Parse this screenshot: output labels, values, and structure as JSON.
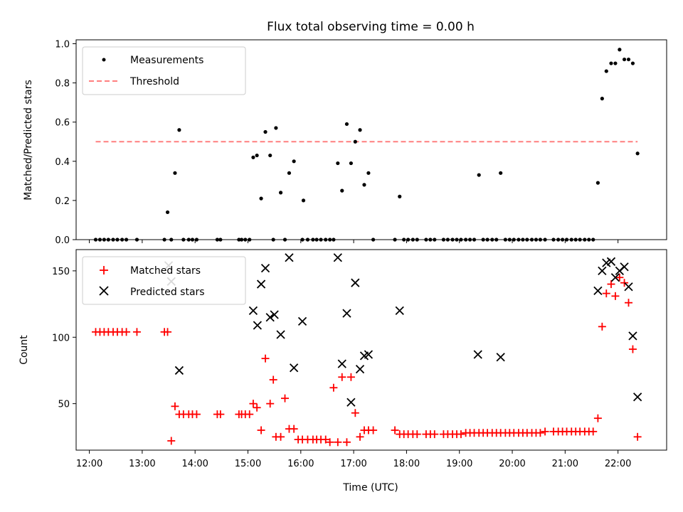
{
  "chart_data": [
    {
      "type": "scatter",
      "title": "Flux total observing time = 0.00 h",
      "xlabel": "",
      "ylabel": "Matched/Predicted stars",
      "ylim": [
        0,
        1.02
      ],
      "yticks": [
        0.0,
        0.2,
        0.4,
        0.6,
        0.8,
        1.0
      ],
      "yticklabels": [
        "0.0",
        "0.2",
        "0.4",
        "0.6",
        "0.8",
        "1.0"
      ],
      "xlim_hours": [
        11.75,
        22.92
      ],
      "legend": {
        "placement": "top-left",
        "entries": [
          "Measurements",
          "Threshold"
        ]
      },
      "series": [
        {
          "name": "Measurements",
          "marker": "dot",
          "color": "#000000",
          "x_hours": [
            12.12,
            12.2,
            12.28,
            12.36,
            12.45,
            12.53,
            12.62,
            12.7,
            12.9,
            13.42,
            13.48,
            13.55,
            13.62,
            13.7,
            13.78,
            13.88,
            13.95,
            14.03,
            14.42,
            14.48,
            14.83,
            14.88,
            14.95,
            15.03,
            15.1,
            15.17,
            15.25,
            15.33,
            15.42,
            15.48,
            15.53,
            15.62,
            15.7,
            15.78,
            15.87,
            16.03,
            16.05,
            16.13,
            16.23,
            16.3,
            16.38,
            16.47,
            16.55,
            16.62,
            16.7,
            16.78,
            16.87,
            16.95,
            17.03,
            17.12,
            17.2,
            17.28,
            17.37,
            17.78,
            17.87,
            17.95,
            18.03,
            18.12,
            18.2,
            18.37,
            18.45,
            18.53,
            18.7,
            18.78,
            18.87,
            18.95,
            19.03,
            19.12,
            19.2,
            19.28,
            19.37,
            19.45,
            19.53,
            19.62,
            19.7,
            19.78,
            19.87,
            19.95,
            20.03,
            20.12,
            20.2,
            20.28,
            20.37,
            20.45,
            20.53,
            20.62,
            20.78,
            20.87,
            20.95,
            21.03,
            21.12,
            21.2,
            21.28,
            21.37,
            21.45,
            21.53,
            21.62,
            21.7,
            21.78,
            21.87,
            21.95,
            22.03,
            22.12,
            22.2,
            22.28,
            22.37
          ],
          "y": [
            0,
            0,
            0,
            0,
            0,
            0,
            0,
            0,
            0,
            0,
            0.14,
            0,
            0.34,
            0.56,
            0,
            0,
            0,
            0,
            0,
            0,
            0,
            0,
            0,
            0,
            0.42,
            0.43,
            0.21,
            0.55,
            0.43,
            0,
            0.57,
            0.24,
            0,
            0.34,
            0.4,
            0,
            0.2,
            0,
            0,
            0,
            0,
            0,
            0,
            0,
            0.39,
            0.25,
            0.59,
            0.39,
            0.5,
            0.56,
            0.28,
            0.34,
            0,
            0,
            0.22,
            0,
            0,
            0,
            0,
            0,
            0,
            0,
            0,
            0,
            0,
            0,
            0,
            0,
            0,
            0,
            0.33,
            0,
            0,
            0,
            0,
            0.34,
            0,
            0,
            0,
            0,
            0,
            0,
            0,
            0,
            0,
            0,
            0,
            0,
            0,
            0,
            0,
            0,
            0,
            0,
            0,
            0,
            0.29,
            0.72,
            0.86,
            0.9,
            0.9,
            0.97,
            0.92,
            0.92,
            0.9,
            0.44
          ]
        },
        {
          "name": "Threshold",
          "style": "dashed",
          "color": "#ff7f7f",
          "x_hours": [
            12.12,
            22.37
          ],
          "y": [
            0.5,
            0.5
          ]
        }
      ]
    },
    {
      "type": "scatter",
      "title": "",
      "xlabel": "Time (UTC)",
      "ylabel": "Count",
      "ylim": [
        15,
        166
      ],
      "yticks": [
        50,
        100,
        150
      ],
      "yticklabels": [
        "50",
        "100",
        "150"
      ],
      "xlim_hours": [
        11.75,
        22.92
      ],
      "xticks_hours": [
        12,
        13,
        14,
        15,
        16,
        17,
        18,
        19,
        20,
        21,
        22
      ],
      "xticklabels": [
        "12:00",
        "13:00",
        "14:00",
        "15:00",
        "16:00",
        "17:00",
        "18:00",
        "19:00",
        "20:00",
        "21:00",
        "22:00"
      ],
      "legend": {
        "placement": "top-left",
        "entries": [
          "Matched stars",
          "Predicted stars"
        ]
      },
      "series": [
        {
          "name": "Matched stars",
          "marker": "plus",
          "color": "#ff0000",
          "x_hours": [
            12.12,
            12.2,
            12.28,
            12.36,
            12.45,
            12.53,
            12.62,
            12.7,
            12.9,
            13.42,
            13.48,
            13.55,
            13.62,
            13.7,
            13.78,
            13.88,
            13.95,
            14.03,
            14.42,
            14.48,
            14.83,
            14.88,
            14.95,
            15.03,
            15.1,
            15.17,
            15.25,
            15.33,
            15.42,
            15.48,
            15.53,
            15.62,
            15.7,
            15.78,
            15.87,
            15.95,
            16.03,
            16.13,
            16.23,
            16.3,
            16.38,
            16.47,
            16.55,
            16.62,
            16.7,
            16.78,
            16.87,
            16.95,
            17.03,
            17.12,
            17.2,
            17.28,
            17.37,
            17.78,
            17.87,
            17.95,
            18.03,
            18.12,
            18.2,
            18.37,
            18.45,
            18.53,
            18.7,
            18.78,
            18.87,
            18.95,
            19.03,
            19.12,
            19.2,
            19.28,
            19.37,
            19.45,
            19.53,
            19.62,
            19.7,
            19.78,
            19.87,
            19.95,
            20.03,
            20.12,
            20.2,
            20.28,
            20.37,
            20.45,
            20.53,
            20.62,
            20.78,
            20.87,
            20.95,
            21.03,
            21.12,
            21.2,
            21.28,
            21.37,
            21.45,
            21.53,
            21.62,
            21.7,
            21.78,
            21.87,
            21.95,
            22.03,
            22.12,
            22.2,
            22.28,
            22.37
          ],
          "y": [
            104,
            104,
            104,
            104,
            104,
            104,
            104,
            104,
            104,
            104,
            104,
            22,
            48,
            42,
            42,
            42,
            42,
            42,
            42,
            42,
            42,
            42,
            42,
            42,
            50,
            47,
            30,
            84,
            50,
            68,
            25,
            25,
            54,
            31,
            31,
            23,
            23,
            23,
            23,
            23,
            23,
            23,
            21,
            62,
            21,
            70,
            21,
            70,
            43,
            25,
            30,
            30,
            30,
            30,
            27,
            27,
            27,
            27,
            27,
            27,
            27,
            27,
            27,
            27,
            27,
            27,
            27,
            28,
            28,
            28,
            28,
            28,
            28,
            28,
            28,
            28,
            28,
            28,
            28,
            28,
            28,
            28,
            28,
            28,
            28,
            29,
            29,
            29,
            29,
            29,
            29,
            29,
            29,
            29,
            29,
            29,
            39,
            108,
            133,
            140,
            131,
            145,
            141,
            126,
            91,
            25
          ]
        },
        {
          "name": "Predicted stars",
          "marker": "x",
          "color": "#000000",
          "x_hours": [
            13.5,
            13.55,
            13.7,
            15.1,
            15.18,
            15.25,
            15.33,
            15.42,
            15.5,
            15.62,
            15.78,
            15.87,
            16.03,
            16.7,
            16.78,
            16.87,
            16.95,
            17.03,
            17.12,
            17.2,
            17.28,
            17.87,
            19.35,
            19.78,
            21.62,
            21.7,
            21.78,
            21.87,
            21.95,
            22.03,
            22.12,
            22.2,
            22.28,
            22.37
          ],
          "y": [
            154,
            142,
            75,
            120,
            109,
            140,
            152,
            115,
            117,
            102,
            160,
            77,
            112,
            160,
            80,
            118,
            51,
            141,
            76,
            86,
            87,
            120,
            87,
            85,
            135,
            150,
            156,
            157,
            145,
            150,
            153,
            138,
            101,
            55
          ]
        }
      ]
    }
  ]
}
